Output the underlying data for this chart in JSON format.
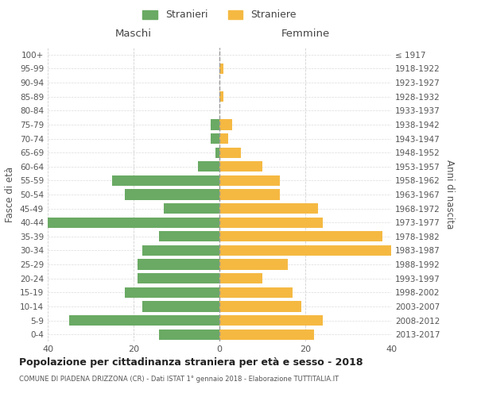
{
  "age_groups": [
    "0-4",
    "5-9",
    "10-14",
    "15-19",
    "20-24",
    "25-29",
    "30-34",
    "35-39",
    "40-44",
    "45-49",
    "50-54",
    "55-59",
    "60-64",
    "65-69",
    "70-74",
    "75-79",
    "80-84",
    "85-89",
    "90-94",
    "95-99",
    "100+"
  ],
  "birth_years": [
    "2013-2017",
    "2008-2012",
    "2003-2007",
    "1998-2002",
    "1993-1997",
    "1988-1992",
    "1983-1987",
    "1978-1982",
    "1973-1977",
    "1968-1972",
    "1963-1967",
    "1958-1962",
    "1953-1957",
    "1948-1952",
    "1943-1947",
    "1938-1942",
    "1933-1937",
    "1928-1932",
    "1923-1927",
    "1918-1922",
    "≤ 1917"
  ],
  "males": [
    14,
    35,
    18,
    22,
    19,
    19,
    18,
    14,
    40,
    13,
    22,
    25,
    5,
    1,
    2,
    2,
    0,
    0,
    0,
    0,
    0
  ],
  "females": [
    22,
    24,
    19,
    17,
    10,
    16,
    40,
    38,
    24,
    23,
    14,
    14,
    10,
    5,
    2,
    3,
    0,
    1,
    0,
    1,
    0
  ],
  "male_color": "#6aaa64",
  "female_color": "#f5b942",
  "background_color": "#ffffff",
  "grid_color": "#cccccc",
  "title": "Popolazione per cittadinanza straniera per età e sesso - 2018",
  "subtitle": "COMUNE DI PIADENA DRIZZONA (CR) - Dati ISTAT 1° gennaio 2018 - Elaborazione TUTTITALIA.IT",
  "xlabel_left": "Maschi",
  "xlabel_right": "Femmine",
  "ylabel_left": "Fasce di età",
  "ylabel_right": "Anni di nascita",
  "legend_male": "Stranieri",
  "legend_female": "Straniere",
  "xlim": 40
}
